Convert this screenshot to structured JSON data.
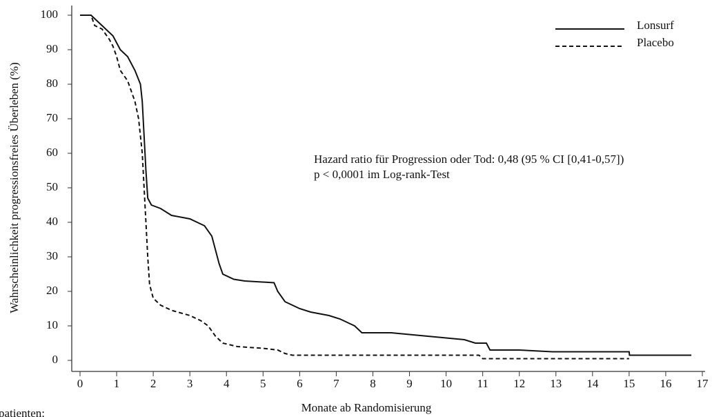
{
  "chart_data": {
    "type": "line",
    "xlabel": "Monate ab Randomisierung",
    "ylabel": "Wahrscheinlichkeit progressionsfreies Überleben (%)",
    "annotations": [
      "Hazard ratio für Progression oder Tod: 0,48 (95 % CI [0,41-0,57])",
      "p < 0,0001 im Log-rank-Test",
      "patienten:"
    ],
    "xlim": [
      0,
      17
    ],
    "ylim": [
      0,
      100
    ],
    "xticks": [
      0,
      1,
      2,
      3,
      4,
      5,
      6,
      7,
      8,
      9,
      10,
      11,
      12,
      13,
      14,
      15,
      16,
      17
    ],
    "yticks": [
      0,
      10,
      20,
      30,
      40,
      50,
      60,
      70,
      80,
      90,
      100
    ],
    "legend": "top-right",
    "series": [
      {
        "name": "Lonsurf",
        "color": "#111111",
        "dash": "solid",
        "x": [
          0,
          0.3,
          0.5,
          0.7,
          0.9,
          1.1,
          1.3,
          1.5,
          1.65,
          1.7,
          1.75,
          1.8,
          1.85,
          1.95,
          2.2,
          2.5,
          3,
          3.4,
          3.6,
          3.7,
          3.8,
          3.9,
          4.2,
          4.5,
          5.3,
          5.4,
          5.6,
          5.8,
          6,
          6.3,
          6.8,
          7.1,
          7.3,
          7.5,
          7.7,
          8.5,
          9,
          9.5,
          10,
          10.5,
          10.8,
          11.1,
          11.2,
          12,
          12.9,
          15,
          15.01,
          16.7
        ],
        "values": [
          100,
          100,
          98,
          96,
          94,
          90,
          88,
          84,
          80,
          75,
          65,
          55,
          47,
          45,
          44,
          42,
          41,
          39,
          36,
          32,
          28,
          25,
          23.5,
          23,
          22.5,
          20,
          17,
          16,
          15,
          14,
          13,
          12,
          11,
          10,
          8,
          8,
          7.5,
          7,
          6.5,
          6,
          5,
          5,
          3,
          3,
          2.5,
          2.5,
          1.5,
          1.5
        ]
      },
      {
        "name": "Placebo",
        "color": "#111111",
        "dash": "dashed",
        "x": [
          0,
          0.3,
          0.4,
          0.6,
          0.8,
          0.9,
          1,
          1.1,
          1.3,
          1.5,
          1.6,
          1.7,
          1.75,
          1.8,
          1.85,
          1.9,
          2,
          2.2,
          2.5,
          3,
          3.3,
          3.5,
          3.7,
          3.9,
          4.3,
          5,
          5.4,
          5.6,
          5.8,
          10.9,
          11,
          15
        ],
        "values": [
          100,
          100,
          97,
          96,
          93,
          91,
          88,
          84,
          81,
          75,
          70,
          60,
          50,
          40,
          30,
          22,
          18,
          16,
          14.5,
          13,
          11.5,
          10,
          7,
          5,
          4,
          3.5,
          3,
          2,
          1.5,
          1.5,
          0.5,
          0.5
        ]
      }
    ]
  }
}
